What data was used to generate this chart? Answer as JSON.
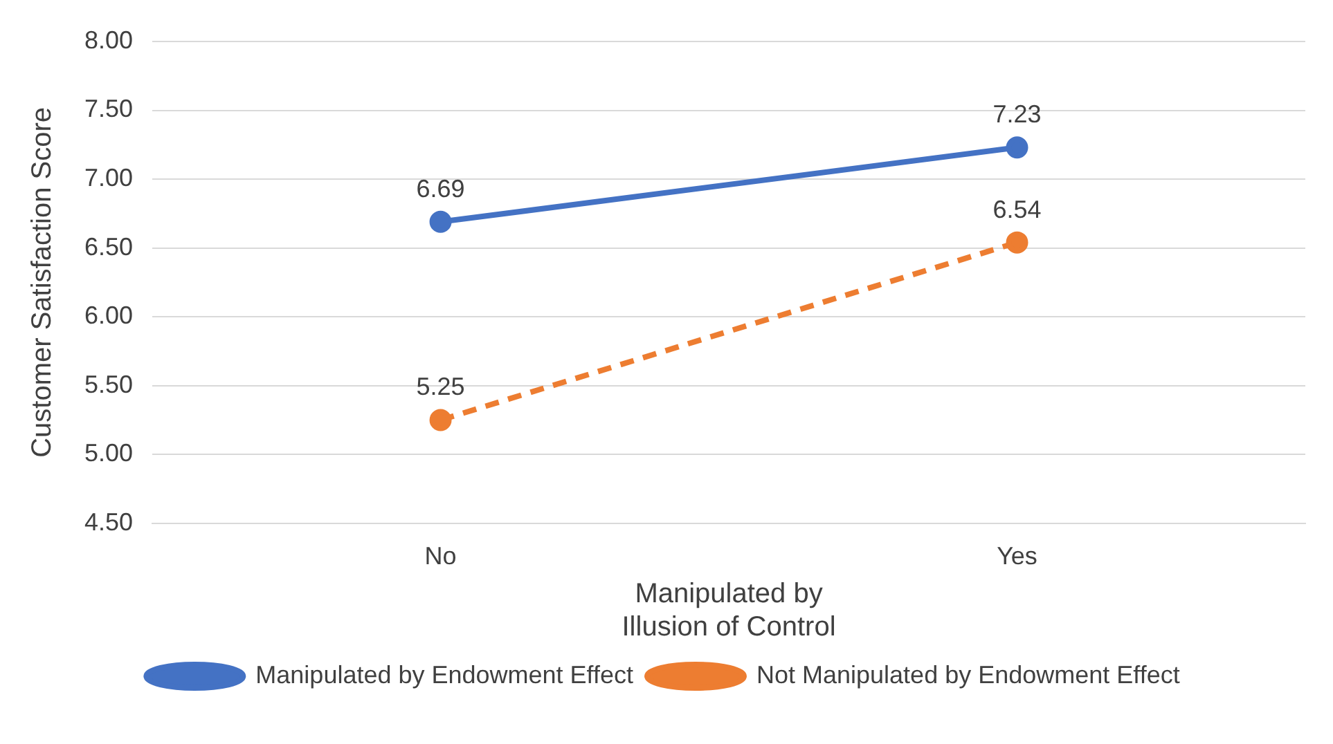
{
  "chart_data": {
    "type": "line",
    "xlabel": "Manipulated by\nIllusion of Control",
    "ylabel": "Customer Satisfaction Score",
    "categories": [
      "No",
      "Yes"
    ],
    "series": [
      {
        "name": "Manipulated by Endowment Effect",
        "color": "#4472c4",
        "values": [
          6.69,
          7.23
        ],
        "line_style": "solid"
      },
      {
        "name": "Not Manipulated by Endowment Effect",
        "color": "#ed7d31",
        "values": [
          5.25,
          6.54
        ],
        "line_style": "dashed"
      }
    ],
    "ylim": [
      4.5,
      8
    ],
    "yticks": [
      {
        "value": 4.5,
        "label": "4.50"
      },
      {
        "value": 5,
        "label": "5.00"
      },
      {
        "value": 5.5,
        "label": "5.50"
      },
      {
        "value": 6,
        "label": "6.00"
      },
      {
        "value": 6.5,
        "label": "6.50"
      },
      {
        "value": 7,
        "label": "7.00"
      },
      {
        "value": 7.5,
        "label": "7.50"
      },
      {
        "value": 8,
        "label": "8.00"
      }
    ],
    "grid": "y",
    "legend": "bottom",
    "marker": "circle",
    "data_labels": true
  }
}
